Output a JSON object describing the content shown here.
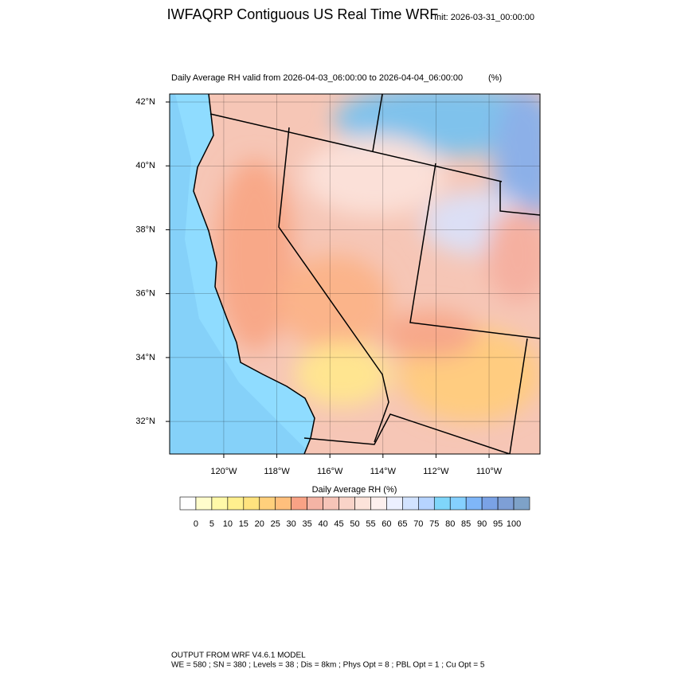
{
  "header": {
    "title": "IWFAQRP Contiguous US Real Time WRF",
    "init": "Init: 2026-03-31_00:00:00"
  },
  "map": {
    "title": "Daily Average RH valid from 2026-04-03_06:00:00 to 2026-04-04_06:00:00",
    "units": "(%)",
    "xlim": [
      -122.04,
      -108.08
    ],
    "ylim": [
      30.98,
      42.25
    ],
    "xticks": [
      {
        "value": -120,
        "label": "120°W"
      },
      {
        "value": -118,
        "label": "118°W"
      },
      {
        "value": -116,
        "label": "116°W"
      },
      {
        "value": -114,
        "label": "114°W"
      },
      {
        "value": -112,
        "label": "112°W"
      },
      {
        "value": -110,
        "label": "110°W"
      }
    ],
    "yticks": [
      {
        "value": 32,
        "label": "32°N"
      },
      {
        "value": 34,
        "label": "34°N"
      },
      {
        "value": 36,
        "label": "36°N"
      },
      {
        "value": 38,
        "label": "38°N"
      },
      {
        "value": 40,
        "label": "40°N"
      },
      {
        "value": 42,
        "label": "42°N"
      }
    ]
  },
  "colorbar": {
    "title": "Daily Average RH  (%)",
    "levels": [
      0,
      5,
      10,
      15,
      20,
      25,
      30,
      35,
      40,
      45,
      50,
      55,
      60,
      65,
      70,
      75,
      80,
      85,
      90,
      95,
      100
    ],
    "colors": [
      "#ffffff",
      "#fffdcc",
      "#fff9a8",
      "#fff08e",
      "#ffe37e",
      "#ffd07c",
      "#ffbf7c",
      "#f9a285",
      "#f4b4a5",
      "#f6c4b8",
      "#f9d3c8",
      "#fce3da",
      "#fdf0ee",
      "#ecf0ff",
      "#d2e3ff",
      "#b6d4ff",
      "#7fd6fa",
      "#85d0ff",
      "#7fb6f8",
      "#7aa2e6",
      "#7e9fd6",
      "#7ea2c8"
    ]
  },
  "footer": {
    "lines": [
      "OUTPUT FROM WRF V4.6.1 MODEL",
      "WE = 580 ; SN = 380 ; Levels = 38 ; Dis = 8km ; Phys Opt = 8 ; PBL Opt = 1 ; Cu Opt = 5"
    ]
  }
}
